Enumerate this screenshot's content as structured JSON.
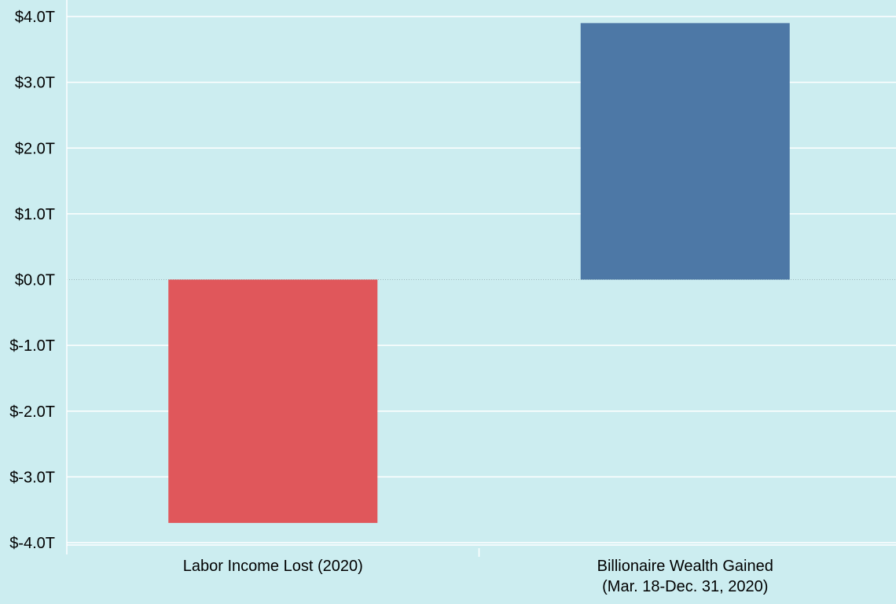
{
  "chart_data": {
    "type": "bar",
    "title": "",
    "xlabel": "",
    "ylabel": "",
    "categories": [
      [
        "Labor Income Lost (2020)"
      ],
      [
        "Billionaire Wealth Gained",
        "(Mar. 18-Dec. 31, 2020)"
      ]
    ],
    "values": [
      -3.7,
      3.9
    ],
    "bar_colors": [
      "#e0575b",
      "#4d78a6"
    ],
    "ylim": [
      -4.0,
      4.0
    ],
    "yticks": [
      4.0,
      3.0,
      2.0,
      1.0,
      0.0,
      -1.0,
      -2.0,
      -3.0,
      -4.0
    ],
    "ytick_labels": [
      "$4.0T",
      "$3.0T",
      "$2.0T",
      "$1.0T",
      "$0.0T",
      "$-1.0T",
      "$-2.0T",
      "$-3.0T",
      "$-4.0T"
    ],
    "grid": true,
    "legend": "none",
    "colors": {
      "background": "#ccedf0",
      "grid": "#ffffff",
      "zero_line": "#9fb8bb",
      "text": "#000000"
    }
  }
}
